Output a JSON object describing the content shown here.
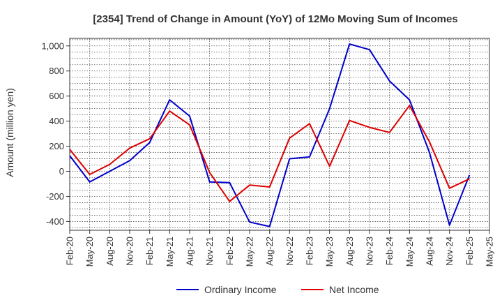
{
  "chart_data": {
    "type": "line",
    "title": "[2354]  Trend of Change in Amount (YoY) of 12Mo Moving Sum of Incomes",
    "ylabel": "Amount (million yen)",
    "xlabel": "",
    "ylim": [
      -470,
      1060
    ],
    "yticks": [
      -400,
      -200,
      0,
      200,
      400,
      600,
      800,
      1000
    ],
    "ytick_labels": [
      "-400",
      "-200",
      "0",
      "200",
      "400",
      "600",
      "800",
      "1,000"
    ],
    "categories": [
      "Feb-20",
      "May-20",
      "Aug-20",
      "Nov-20",
      "Feb-21",
      "May-21",
      "Aug-21",
      "Nov-21",
      "Feb-22",
      "May-22",
      "Aug-22",
      "Nov-22",
      "Feb-23",
      "May-23",
      "Aug-23",
      "Nov-23",
      "Feb-24",
      "May-24",
      "Aug-24",
      "Nov-24",
      "Feb-25",
      "May-25"
    ],
    "grid": true,
    "legend_position": "bottom",
    "series": [
      {
        "name": "Ordinary Income",
        "color": "#0000cc",
        "values": [
          125,
          -85,
          0,
          85,
          230,
          570,
          440,
          -85,
          -90,
          -405,
          -440,
          100,
          115,
          500,
          1015,
          970,
          720,
          570,
          150,
          -430,
          -30,
          null
        ]
      },
      {
        "name": "Net Income",
        "color": "#dd0000",
        "values": [
          175,
          -25,
          55,
          185,
          260,
          480,
          370,
          -10,
          -240,
          -110,
          -125,
          265,
          380,
          40,
          405,
          350,
          310,
          525,
          235,
          -135,
          -60,
          null
        ]
      }
    ]
  }
}
